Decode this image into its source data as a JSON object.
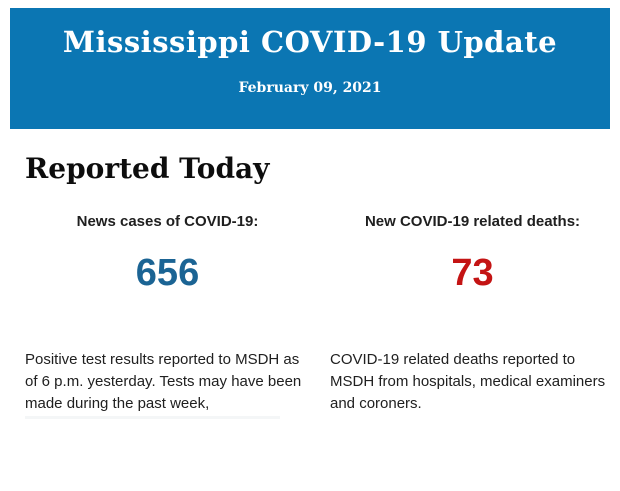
{
  "header": {
    "title": "Mississippi COVID-19 Update",
    "date": "February 09, 2021",
    "bg_color": "#0b76b3",
    "text_color": "#ffffff"
  },
  "main": {
    "section_title": "Reported Today",
    "stats": [
      {
        "label": "News cases of COVID-19:",
        "value": "656",
        "value_color": "#1b6494",
        "description": "Positive test results reported to MSDH as of 6 p.m. yesterday. Tests may have been made during the past week,"
      },
      {
        "label": "New COVID-19 related deaths:",
        "value": "73",
        "value_color": "#c41414",
        "description": "COVID-19 related deaths reported to MSDH from hospitals, medical examiners and coroners."
      }
    ]
  }
}
